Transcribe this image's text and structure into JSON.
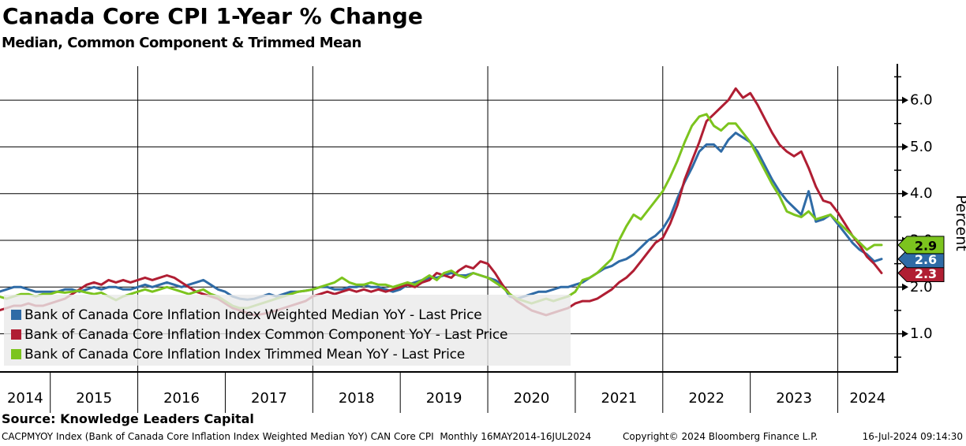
{
  "header": {
    "title": "Canada Core CPI 1-Year % Change",
    "subtitle": "Median, Common Component & Trimmed Mean"
  },
  "legend": {
    "items": [
      {
        "label": "Bank of Canada Core Inflation Index Weighted Median YoY - Last Price",
        "color": "#2f6ba6"
      },
      {
        "label": "Bank of Canada Core Inflation Index Common Component YoY - Last Price",
        "color": "#b01e33"
      },
      {
        "label": "Bank of Canada Core Inflation Index Trimmed Mean YoY - Last Price",
        "color": "#7cc41e"
      }
    ]
  },
  "source_line": "Source: Knowledge Leaders Capital",
  "footer": {
    "footnote": "CACPMYOY Index (Bank of Canada Core Inflation Index Weighted Median YoY) CAN Core CPI  Monthly 16MAY2014-16JUL2024",
    "copyright": "Copyright© 2024 Bloomberg Finance L.P.",
    "timestamp": "16-Jul-2024 09:14:30"
  },
  "chart_data": {
    "type": "line",
    "title": "Canada Core CPI 1-Year % Change",
    "subtitle": "Median, Common Component & Trimmed Mean",
    "xlabel": "",
    "ylabel": "Percent",
    "ylim": [
      0.2,
      6.8
    ],
    "y_ticks": [
      1.0,
      2.0,
      3.0,
      4.0,
      5.0,
      6.0
    ],
    "y_minor_ticks": [
      0.5,
      1.5,
      2.5,
      3.5,
      4.5,
      5.5,
      6.5
    ],
    "grid": "on",
    "x_gridline_years": [
      2016,
      2018,
      2020,
      2022,
      2024
    ],
    "x_year_labels": [
      "2014",
      "2015",
      "2016",
      "2017",
      "2018",
      "2019",
      "2020",
      "2021",
      "2022",
      "2023",
      "2024"
    ],
    "frequency": "monthly",
    "x_start": "2014-05",
    "x_end": "2024-07",
    "legend_position": "bottom-left",
    "series": [
      {
        "name": "Bank of Canada Core Inflation Index Weighted Median YoY",
        "color": "#2f6ba6",
        "last_price": 2.6,
        "values": [
          1.85,
          1.9,
          1.95,
          2.0,
          2.0,
          1.95,
          1.9,
          1.9,
          1.9,
          1.9,
          1.95,
          1.95,
          1.9,
          1.95,
          2.0,
          1.95,
          2.0,
          2.0,
          1.95,
          1.95,
          2.0,
          2.05,
          2.0,
          2.05,
          2.1,
          2.05,
          2.0,
          2.05,
          2.1,
          2.15,
          2.05,
          1.95,
          1.9,
          1.8,
          1.75,
          1.73,
          1.75,
          1.8,
          1.85,
          1.8,
          1.85,
          1.9,
          1.9,
          1.92,
          1.95,
          2.0,
          2.0,
          1.95,
          1.95,
          2.0,
          2.0,
          2.05,
          2.0,
          2.0,
          1.95,
          1.9,
          1.95,
          2.05,
          2.1,
          2.15,
          2.2,
          2.2,
          2.25,
          2.3,
          2.25,
          2.25,
          2.3,
          2.25,
          2.2,
          2.15,
          2.05,
          1.8,
          1.75,
          1.8,
          1.85,
          1.9,
          1.9,
          1.95,
          2.0,
          2.0,
          2.05,
          2.1,
          2.2,
          2.3,
          2.4,
          2.45,
          2.55,
          2.6,
          2.7,
          2.85,
          3.0,
          3.1,
          3.25,
          3.5,
          3.9,
          4.25,
          4.55,
          4.9,
          5.05,
          5.05,
          4.9,
          5.15,
          5.3,
          5.2,
          5.1,
          4.9,
          4.6,
          4.3,
          4.05,
          3.85,
          3.7,
          3.55,
          4.05,
          3.4,
          3.45,
          3.55,
          3.35,
          3.15,
          2.95,
          2.8,
          2.7,
          2.55,
          2.6
        ]
      },
      {
        "name": "Bank of Canada Core Inflation Index Common Component YoY",
        "color": "#b01e33",
        "last_price": 2.3,
        "values": [
          1.45,
          1.5,
          1.55,
          1.6,
          1.6,
          1.65,
          1.6,
          1.6,
          1.65,
          1.7,
          1.75,
          1.85,
          1.95,
          2.05,
          2.1,
          2.05,
          2.15,
          2.1,
          2.15,
          2.1,
          2.15,
          2.2,
          2.15,
          2.2,
          2.25,
          2.2,
          2.1,
          2.0,
          1.9,
          1.85,
          1.8,
          1.75,
          1.65,
          1.55,
          1.5,
          1.45,
          1.4,
          1.42,
          1.45,
          1.5,
          1.55,
          1.6,
          1.65,
          1.7,
          1.8,
          1.85,
          1.9,
          1.85,
          1.9,
          1.95,
          1.9,
          1.95,
          1.9,
          1.95,
          1.9,
          1.95,
          2.0,
          2.05,
          2.0,
          2.1,
          2.15,
          2.3,
          2.25,
          2.2,
          2.35,
          2.45,
          2.4,
          2.55,
          2.5,
          2.3,
          2.05,
          1.85,
          1.7,
          1.6,
          1.5,
          1.45,
          1.4,
          1.45,
          1.5,
          1.55,
          1.65,
          1.7,
          1.7,
          1.75,
          1.85,
          1.95,
          2.1,
          2.2,
          2.35,
          2.55,
          2.75,
          2.95,
          3.05,
          3.35,
          3.75,
          4.3,
          4.7,
          5.1,
          5.55,
          5.7,
          5.85,
          6.0,
          6.25,
          6.05,
          6.15,
          5.9,
          5.6,
          5.3,
          5.05,
          4.9,
          4.8,
          4.9,
          4.55,
          4.15,
          3.85,
          3.8,
          3.6,
          3.35,
          3.1,
          2.9,
          2.65,
          2.5,
          2.3
        ]
      },
      {
        "name": "Bank of Canada Core Inflation Index Trimmed Mean YoY",
        "color": "#7cc41e",
        "last_price": 2.9,
        "values": [
          1.95,
          1.8,
          1.75,
          1.8,
          1.85,
          1.85,
          1.8,
          1.85,
          1.85,
          1.9,
          1.88,
          1.9,
          1.92,
          1.88,
          1.85,
          1.88,
          1.8,
          1.72,
          1.8,
          1.85,
          1.9,
          1.95,
          1.9,
          1.95,
          2.0,
          1.95,
          1.9,
          1.85,
          1.9,
          1.95,
          1.85,
          1.8,
          1.7,
          1.6,
          1.55,
          1.55,
          1.6,
          1.65,
          1.7,
          1.75,
          1.8,
          1.85,
          1.9,
          1.92,
          1.95,
          2.0,
          2.05,
          2.1,
          2.2,
          2.1,
          2.05,
          2.05,
          2.1,
          2.05,
          2.05,
          2.0,
          2.05,
          2.1,
          2.05,
          2.15,
          2.25,
          2.15,
          2.3,
          2.35,
          2.25,
          2.2,
          2.3,
          2.25,
          2.2,
          2.1,
          2.0,
          1.85,
          1.75,
          1.7,
          1.65,
          1.7,
          1.75,
          1.7,
          1.75,
          1.8,
          1.9,
          2.15,
          2.2,
          2.3,
          2.45,
          2.6,
          3.0,
          3.3,
          3.55,
          3.45,
          3.65,
          3.85,
          4.05,
          4.35,
          4.7,
          5.1,
          5.45,
          5.65,
          5.7,
          5.45,
          5.35,
          5.5,
          5.5,
          5.3,
          5.1,
          4.8,
          4.5,
          4.2,
          3.95,
          3.62,
          3.55,
          3.5,
          3.62,
          3.45,
          3.5,
          3.55,
          3.4,
          3.25,
          3.1,
          2.95,
          2.8,
          2.9,
          2.9
        ]
      }
    ],
    "last_price_tags": [
      {
        "label": "2.3",
        "value": 2.3,
        "bg": "#b01e33",
        "fg": "#ffffff"
      },
      {
        "label": "2.6",
        "value": 2.6,
        "bg": "#2f6ba6",
        "fg": "#ffffff"
      },
      {
        "label": "2.9",
        "value": 2.9,
        "bg": "#7cc41e",
        "fg": "#000000"
      }
    ]
  }
}
